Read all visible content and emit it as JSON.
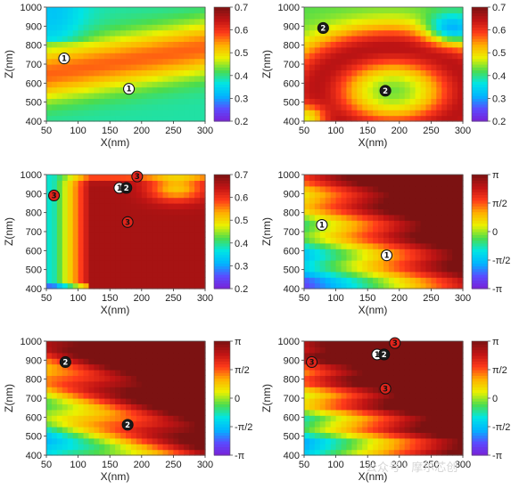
{
  "colors": {
    "jet_stops": [
      "#7a1fd6",
      "#5a4cff",
      "#00b4ff",
      "#00e5e5",
      "#4cdc4c",
      "#eaf200",
      "#ffb000",
      "#ff3a1a",
      "#c01414",
      "#7c1212"
    ],
    "marker_white": "#ffffff",
    "marker_black": "#1a1a1a",
    "marker_red": "#e0241b"
  },
  "watermark": "公众号 · 摩尔芯创",
  "chart_data": [
    {
      "type": "heatmap",
      "title": "",
      "xlabel": "X(nm)",
      "ylabel": "Z(nm)",
      "xlim": [
        50,
        300
      ],
      "ylim": [
        400,
        1000
      ],
      "xticks": [
        "50",
        "100",
        "150",
        "200",
        "250",
        "300"
      ],
      "yticks": [
        "400",
        "500",
        "600",
        "700",
        "800",
        "900",
        "1000"
      ],
      "colorbar": {
        "min": 0.2,
        "max": 0.7,
        "ticks": [
          "0.2",
          "0.3",
          "0.4",
          "0.5",
          "0.6",
          "0.7"
        ]
      },
      "markers": [
        {
          "label": "1",
          "style": "white",
          "x": 78,
          "z": 730
        },
        {
          "label": "1",
          "style": "white",
          "x": 180,
          "z": 570
        }
      ]
    },
    {
      "type": "heatmap",
      "title": "",
      "xlabel": "X(nm)",
      "ylabel": "Z(nm)",
      "xlim": [
        50,
        300
      ],
      "ylim": [
        400,
        1000
      ],
      "xticks": [
        "50",
        "100",
        "150",
        "200",
        "250",
        "300"
      ],
      "yticks": [
        "400",
        "500",
        "600",
        "700",
        "800",
        "900",
        "1000"
      ],
      "colorbar": {
        "min": 0.2,
        "max": 0.7,
        "ticks": [
          "0.2",
          "0.3",
          "0.4",
          "0.5",
          "0.6",
          "0.7"
        ]
      },
      "markers": [
        {
          "label": "2",
          "style": "black",
          "x": 80,
          "z": 890
        },
        {
          "label": "2",
          "style": "black",
          "x": 178,
          "z": 560
        }
      ]
    },
    {
      "type": "heatmap",
      "title": "",
      "xlabel": "X(nm)",
      "ylabel": "Z(nm)",
      "xlim": [
        50,
        300
      ],
      "ylim": [
        400,
        1000
      ],
      "xticks": [
        "50",
        "100",
        "150",
        "200",
        "250",
        "300"
      ],
      "yticks": [
        "400",
        "500",
        "600",
        "700",
        "800",
        "900",
        "1000"
      ],
      "colorbar": {
        "min": 0.2,
        "max": 0.7,
        "ticks": [
          "0.2",
          "0.3",
          "0.4",
          "0.5",
          "0.6",
          "0.7"
        ]
      },
      "markers": [
        {
          "label": "3",
          "style": "red",
          "x": 62,
          "z": 890
        },
        {
          "label": "1",
          "style": "white",
          "x": 165,
          "z": 930
        },
        {
          "label": "2",
          "style": "black",
          "x": 176,
          "z": 930
        },
        {
          "label": "3",
          "style": "red",
          "x": 193,
          "z": 990
        },
        {
          "label": "3",
          "style": "red",
          "x": 178,
          "z": 750
        }
      ]
    },
    {
      "type": "heatmap",
      "title": "",
      "xlabel": "X(nm)",
      "ylabel": "Z(nm)",
      "xlim": [
        50,
        300
      ],
      "ylim": [
        400,
        1000
      ],
      "xticks": [
        "50",
        "100",
        "150",
        "200",
        "250",
        "300"
      ],
      "yticks": [
        "400",
        "500",
        "600",
        "700",
        "800",
        "900",
        "1000"
      ],
      "colorbar": {
        "min": -3.14159,
        "max": 3.14159,
        "ticks": [
          "-π",
          "-π/2",
          "0",
          "π/2",
          "π"
        ]
      },
      "markers": [
        {
          "label": "1",
          "style": "white",
          "x": 78,
          "z": 735
        },
        {
          "label": "1",
          "style": "white",
          "x": 180,
          "z": 575
        }
      ]
    },
    {
      "type": "heatmap",
      "title": "",
      "xlabel": "X(nm)",
      "ylabel": "Z(nm)",
      "xlim": [
        50,
        300
      ],
      "ylim": [
        400,
        1000
      ],
      "xticks": [
        "50",
        "100",
        "150",
        "200",
        "250",
        "300"
      ],
      "yticks": [
        "400",
        "500",
        "600",
        "700",
        "800",
        "900",
        "1000"
      ],
      "colorbar": {
        "min": -3.14159,
        "max": 3.14159,
        "ticks": [
          "-π",
          "-π/2",
          "0",
          "π/2",
          "π"
        ]
      },
      "markers": [
        {
          "label": "2",
          "style": "black",
          "x": 80,
          "z": 890
        },
        {
          "label": "2",
          "style": "black",
          "x": 178,
          "z": 560
        }
      ]
    },
    {
      "type": "heatmap",
      "title": "",
      "xlabel": "X(nm)",
      "ylabel": "Z(nm)",
      "xlim": [
        50,
        300
      ],
      "ylim": [
        400,
        1000
      ],
      "xticks": [
        "50",
        "100",
        "150",
        "200",
        "250",
        "300"
      ],
      "yticks": [
        "400",
        "500",
        "600",
        "700",
        "800",
        "900",
        "1000"
      ],
      "colorbar": {
        "min": -3.14159,
        "max": 3.14159,
        "ticks": [
          "-π",
          "-π/2",
          "0",
          "π/2",
          "π"
        ]
      },
      "markers": [
        {
          "label": "3",
          "style": "red",
          "x": 62,
          "z": 890
        },
        {
          "label": "1",
          "style": "white",
          "x": 165,
          "z": 930
        },
        {
          "label": "2",
          "style": "black",
          "x": 176,
          "z": 930
        },
        {
          "label": "3",
          "style": "red",
          "x": 193,
          "z": 990
        },
        {
          "label": "3",
          "style": "red",
          "x": 178,
          "z": 750
        }
      ]
    }
  ]
}
